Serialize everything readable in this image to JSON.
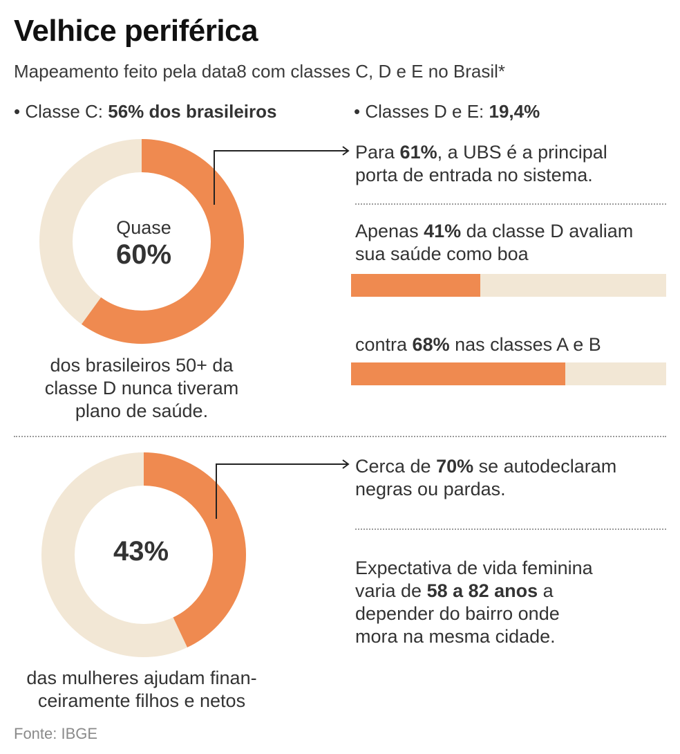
{
  "title": "Velhice periférica",
  "subtitle": "Mapeamento feito pela data8 com classes C, D e E no Brasil*",
  "bullets": {
    "classe_c_prefix": "• Classe C: ",
    "classe_c_value": "56% dos brasileiros",
    "classes_de_prefix": "• Classes D e E: ",
    "classes_de_value": "19,4%"
  },
  "donut1": {
    "top_label": "Quase",
    "big_label": "60%",
    "caption_line1": "dos brasileiros 50+ da",
    "caption_line2": "classe D nunca tiveram",
    "caption_line3": "plano de saúde."
  },
  "donut2": {
    "big_label": "43%",
    "caption_line1": "das mulheres ajudam finan-",
    "caption_line2": "ceiramente filhos e netos"
  },
  "facts": {
    "ubs_pre": "Para ",
    "ubs_bold": "61%",
    "ubs_post": ", a UBS é a principal",
    "ubs_line2": "porta de entrada no sistema.",
    "saude_pre": "Apenas ",
    "saude_bold": "41%",
    "saude_post": " da classe D avaliam",
    "saude_line2": "sua saúde como boa",
    "ab_pre": "contra ",
    "ab_bold": "68%",
    "ab_post": " nas classes A e B",
    "negras_pre": "Cerca de ",
    "negras_bold": "70%",
    "negras_post": " se autodeclaram",
    "negras_line2": "negras ou pardas.",
    "vida_line1": "Expectativa de vida feminina",
    "vida_pre": "varia de ",
    "vida_bold": "58 a 82 anos",
    "vida_post": " a",
    "vida_line3": "depender do bairro onde",
    "vida_line4": "mora na mesma cidade."
  },
  "source": "Fonte: IBGE",
  "colors": {
    "accent": "#ef8a50",
    "track": "#f2e7d5",
    "text": "#333333"
  },
  "chart_data": [
    {
      "type": "pie",
      "categories": [
        "nunca tiveram plano de saúde",
        "restante"
      ],
      "values": [
        60,
        40
      ]
    },
    {
      "type": "pie",
      "categories": [
        "ajudam financeiramente filhos e netos",
        "restante"
      ],
      "values": [
        43,
        57
      ]
    },
    {
      "type": "bar",
      "categories": [
        "classe D",
        "classes A e B"
      ],
      "values": [
        41,
        68
      ],
      "ylim": [
        0,
        100
      ]
    }
  ]
}
